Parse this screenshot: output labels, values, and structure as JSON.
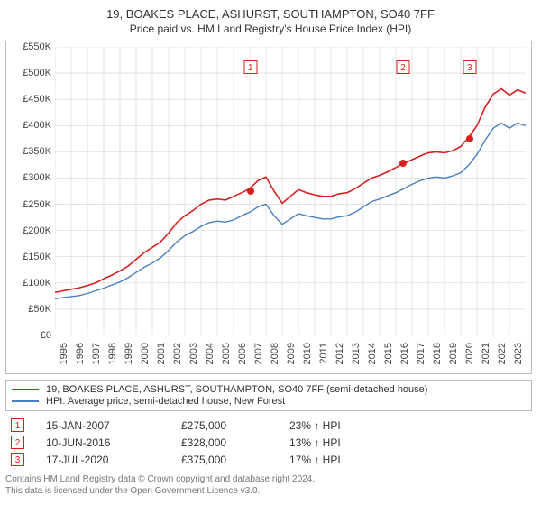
{
  "title": "19, BOAKES PLACE, ASHURST, SOUTHAMPTON, SO40 7FF",
  "subtitle": "Price paid vs. HM Land Registry's House Price Index (HPI)",
  "chart": {
    "type": "line",
    "background_color": "#ffffff",
    "border_color": "#bbbbbb",
    "grid_color": "#d5d5d5",
    "label_fontsize": 11,
    "x": {
      "min": 1995,
      "max": 2024,
      "ticks": [
        1995,
        1996,
        1997,
        1998,
        1999,
        2000,
        2001,
        2002,
        2003,
        2004,
        2005,
        2006,
        2007,
        2008,
        2009,
        2010,
        2011,
        2012,
        2013,
        2014,
        2015,
        2016,
        2017,
        2018,
        2019,
        2020,
        2021,
        2022,
        2023
      ]
    },
    "y": {
      "min": 0,
      "max": 550000,
      "tick_step": 50000,
      "ticks": [
        0,
        50000,
        100000,
        150000,
        200000,
        250000,
        300000,
        350000,
        400000,
        450000,
        500000,
        550000
      ],
      "tick_labels": [
        "£0",
        "£50K",
        "£100K",
        "£150K",
        "£200K",
        "£250K",
        "£300K",
        "£350K",
        "£400K",
        "£450K",
        "£500K",
        "£550K"
      ]
    },
    "series": [
      {
        "name": "19, BOAKES PLACE, ASHURST, SOUTHAMPTON, SO40 7FF (semi-detached house)",
        "color": "#d62020",
        "line_width": 1.6,
        "x": [
          1995,
          1995.5,
          1996,
          1996.5,
          1997,
          1997.5,
          1998,
          1998.5,
          1999,
          1999.5,
          2000,
          2000.5,
          2001,
          2001.5,
          2002,
          2002.5,
          2003,
          2003.5,
          2004,
          2004.5,
          2005,
          2005.5,
          2006,
          2006.5,
          2007,
          2007.5,
          2008,
          2008.5,
          2009,
          2009.5,
          2010,
          2010.5,
          2011,
          2011.5,
          2012,
          2012.5,
          2013,
          2013.5,
          2014,
          2014.5,
          2015,
          2015.5,
          2016,
          2016.5,
          2017,
          2017.5,
          2018,
          2018.5,
          2019,
          2019.5,
          2020,
          2020.5,
          2021,
          2021.5,
          2022,
          2022.5,
          2023,
          2023.5,
          2024
        ],
        "y": [
          82000,
          85000,
          88000,
          91000,
          95000,
          100000,
          108000,
          115000,
          123000,
          132000,
          145000,
          158000,
          168000,
          178000,
          195000,
          215000,
          228000,
          238000,
          250000,
          258000,
          260000,
          258000,
          265000,
          272000,
          280000,
          295000,
          302000,
          275000,
          252000,
          265000,
          278000,
          272000,
          268000,
          265000,
          265000,
          270000,
          272000,
          280000,
          290000,
          300000,
          305000,
          312000,
          320000,
          328000,
          335000,
          342000,
          348000,
          350000,
          348000,
          352000,
          360000,
          378000,
          400000,
          435000,
          460000,
          470000,
          458000,
          468000,
          462000
        ]
      },
      {
        "name": "HPI: Average price, semi-detached house, New Forest",
        "color": "#4a7fbf",
        "line_width": 1.4,
        "x": [
          1995,
          1995.5,
          1996,
          1996.5,
          1997,
          1997.5,
          1998,
          1998.5,
          1999,
          1999.5,
          2000,
          2000.5,
          2001,
          2001.5,
          2002,
          2002.5,
          2003,
          2003.5,
          2004,
          2004.5,
          2005,
          2005.5,
          2006,
          2006.5,
          2007,
          2007.5,
          2008,
          2008.5,
          2009,
          2009.5,
          2010,
          2010.5,
          2011,
          2011.5,
          2012,
          2012.5,
          2013,
          2013.5,
          2014,
          2014.5,
          2015,
          2015.5,
          2016,
          2016.5,
          2017,
          2017.5,
          2018,
          2018.5,
          2019,
          2019.5,
          2020,
          2020.5,
          2021,
          2021.5,
          2022,
          2022.5,
          2023,
          2023.5,
          2024
        ],
        "y": [
          70000,
          72000,
          74000,
          76000,
          80000,
          85000,
          90000,
          96000,
          102000,
          110000,
          120000,
          130000,
          138000,
          148000,
          162000,
          178000,
          190000,
          198000,
          208000,
          215000,
          218000,
          216000,
          220000,
          228000,
          235000,
          245000,
          250000,
          228000,
          212000,
          222000,
          232000,
          228000,
          225000,
          222000,
          222000,
          226000,
          228000,
          235000,
          245000,
          255000,
          260000,
          266000,
          272000,
          280000,
          288000,
          295000,
          300000,
          302000,
          300000,
          304000,
          310000,
          325000,
          345000,
          372000,
          395000,
          405000,
          395000,
          405000,
          400000
        ]
      }
    ],
    "sale_markers": [
      {
        "n": "1",
        "x": 2007.04,
        "y": 275000,
        "color": "#d62020"
      },
      {
        "n": "2",
        "x": 2016.44,
        "y": 328000,
        "color": "#d62020"
      },
      {
        "n": "3",
        "x": 2020.54,
        "y": 375000,
        "color": "#d62020"
      }
    ],
    "flag_y": 525000
  },
  "legend": [
    {
      "color": "#d62020",
      "label": "19, BOAKES PLACE, ASHURST, SOUTHAMPTON, SO40 7FF (semi-detached house)"
    },
    {
      "color": "#4a7fbf",
      "label": "HPI: Average price, semi-detached house, New Forest"
    }
  ],
  "annotations": [
    {
      "n": "1",
      "date": "15-JAN-2007",
      "price": "£275,000",
      "delta": "23% ↑ HPI",
      "color": "#d62020"
    },
    {
      "n": "2",
      "date": "10-JUN-2016",
      "price": "£328,000",
      "delta": "13% ↑ HPI",
      "color": "#d62020"
    },
    {
      "n": "3",
      "date": "17-JUL-2020",
      "price": "£375,000",
      "delta": "17% ↑ HPI",
      "color": "#d62020"
    }
  ],
  "footer": {
    "line1": "Contains HM Land Registry data © Crown copyright and database right 2024.",
    "line2": "This data is licensed under the Open Government Licence v3.0."
  }
}
